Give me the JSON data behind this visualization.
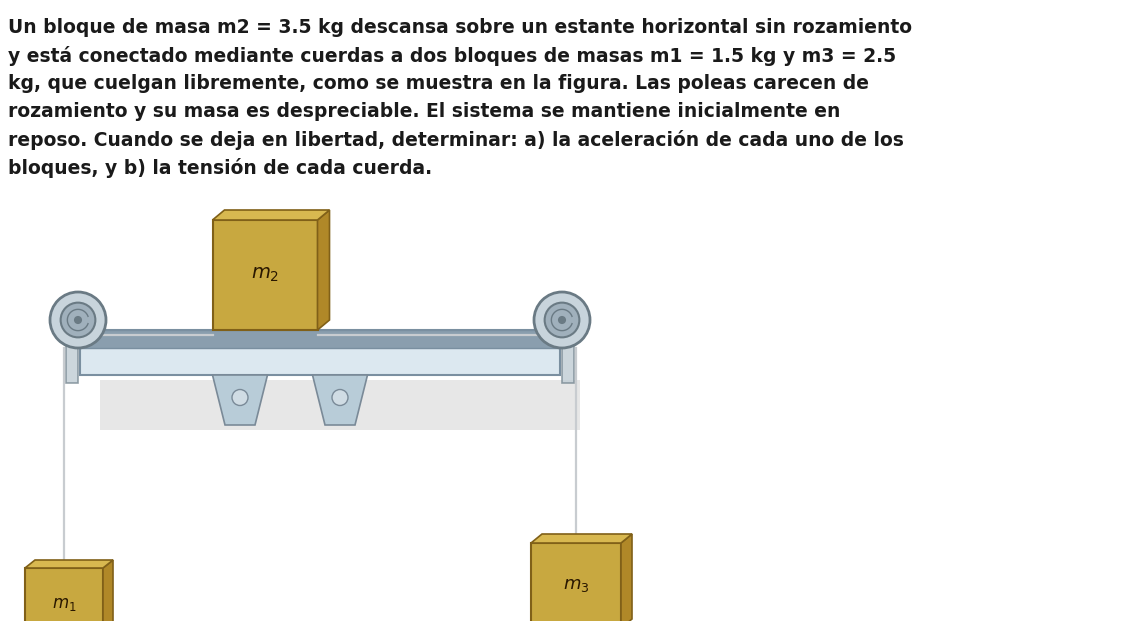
{
  "text_lines": [
    "Un bloque de masa m2 = 3.5 kg descansa sobre un estante horizontal sin rozamiento",
    "y está conectado mediante cuerdas a dos bloques de masas m1 = 1.5 kg y m3 = 2.5",
    "kg, que cuelgan libremente, como se muestra en la figura. Las poleas carecen de",
    "rozamiento y su masa es despreciable. El sistema se mantiene inicialmente en",
    "reposo. Cuando se deja en libertad, determinar: a) la aceleración de cada uno de los",
    "bloques, y b) la tensión de cada cuerda."
  ],
  "bg_color": "#ffffff",
  "text_color": "#1a1a1a",
  "label_m1": "$m_1$",
  "label_m2": "$m_2$",
  "label_m3": "$m_3$",
  "shelf_fill": "#dce8f0",
  "shelf_edge": "#7a8fa0",
  "shelf_top_fill": "#8a9eae",
  "block_fill": "#c8a840",
  "block_shade": "#b08828",
  "block_top": "#d8b850",
  "block_edge": "#806018",
  "rope_color": "#c8ccd0",
  "rope_lw": 1.6,
  "pulley_outer": "#c8d4dc",
  "pulley_inner": "#a0b0bc",
  "pulley_edge": "#6a7a84",
  "support_fill": "#c0ccd4",
  "support_edge": "#7a8a94",
  "shadow_color": "#d8d8d8",
  "leg_fill": "#b8ccd8",
  "leg_edge": "#7a8a98"
}
